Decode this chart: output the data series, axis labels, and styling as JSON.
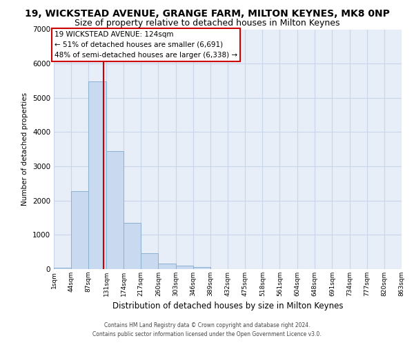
{
  "title": "19, WICKSTEAD AVENUE, GRANGE FARM, MILTON KEYNES, MK8 0NP",
  "subtitle": "Size of property relative to detached houses in Milton Keynes",
  "xlabel": "Distribution of detached houses by size in Milton Keynes",
  "ylabel": "Number of detached properties",
  "bar_values": [
    50,
    2270,
    5480,
    3440,
    1350,
    460,
    170,
    100,
    60,
    0,
    0,
    0,
    0,
    0,
    0,
    0,
    0,
    0,
    0,
    0
  ],
  "bin_edges": [
    1,
    44,
    87,
    131,
    174,
    217,
    260,
    303,
    346,
    389,
    432,
    475,
    518,
    561,
    604,
    648,
    691,
    734,
    777,
    820,
    863
  ],
  "tick_labels": [
    "1sqm",
    "44sqm",
    "87sqm",
    "131sqm",
    "174sqm",
    "217sqm",
    "260sqm",
    "303sqm",
    "346sqm",
    "389sqm",
    "432sqm",
    "475sqm",
    "518sqm",
    "561sqm",
    "604sqm",
    "648sqm",
    "691sqm",
    "734sqm",
    "777sqm",
    "820sqm",
    "863sqm"
  ],
  "bar_color": "#c9d9f0",
  "bar_edge_color": "#8ab0d0",
  "vline_x": 124,
  "vline_color": "#cc0000",
  "ylim": [
    0,
    7000
  ],
  "yticks": [
    0,
    1000,
    2000,
    3000,
    4000,
    5000,
    6000,
    7000
  ],
  "annotation_title": "19 WICKSTEAD AVENUE: 124sqm",
  "annotation_line1": "← 51% of detached houses are smaller (6,691)",
  "annotation_line2": "48% of semi-detached houses are larger (6,338) →",
  "annotation_box_color": "#ffffff",
  "annotation_box_edge": "#cc0000",
  "footer1": "Contains HM Land Registry data © Crown copyright and database right 2024.",
  "footer2": "Contains public sector information licensed under the Open Government Licence v3.0.",
  "bg_color": "#ffffff",
  "plot_bg_color": "#e8eef8",
  "grid_color": "#c8d4e8",
  "title_fontsize": 10,
  "subtitle_fontsize": 9
}
